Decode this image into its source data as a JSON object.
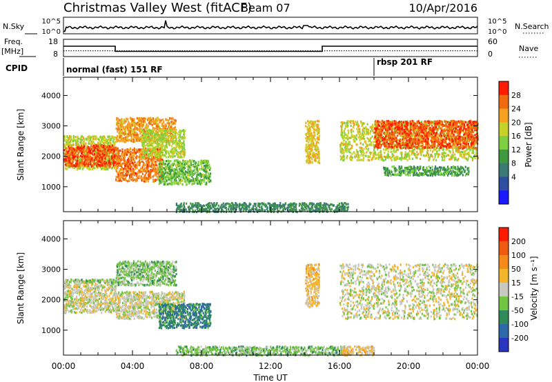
{
  "header": {
    "title": "Christmas Valley West (fitACF)",
    "beam": "Beam 07",
    "date": "10/Apr/2016"
  },
  "noise_panel": {
    "left_label": "N.Sky",
    "left_ticks": [
      "10^5",
      "10^0"
    ],
    "right_label": "N.Search",
    "right_ticks": [
      "10^5",
      "10^0"
    ]
  },
  "freq_panel": {
    "left_label_1": "Freq.",
    "left_label_2": "[MHz]",
    "left_ticks": [
      "18",
      "8"
    ],
    "right_label": "Nave",
    "right_ticks": [
      "60",
      "0"
    ]
  },
  "cpid": {
    "label": "CPID",
    "segments": [
      "normal (fast) 151 RF",
      "rbsp 201 RF"
    ]
  },
  "x_axis": {
    "title": "Time UT",
    "ticks": [
      "00:00",
      "04:00",
      "08:00",
      "12:00",
      "16:00",
      "20:00",
      "00:00"
    ]
  },
  "power_panel": {
    "ylabel": "Slant Range [km]",
    "yticks": [
      "4000",
      "3000",
      "2000",
      "1000"
    ],
    "colorbar_label": "Power [dB]",
    "colorbar_ticks": [
      "28",
      "24",
      "20",
      "16",
      "12",
      "8",
      "4"
    ],
    "colors": [
      "#1a1aff",
      "#2e4fa0",
      "#3a7a74",
      "#3f9a3f",
      "#7fd040",
      "#c8d12a",
      "#f5a020",
      "#f06a10",
      "#ff1a00"
    ]
  },
  "velocity_panel": {
    "ylabel": "Slant Range [km]",
    "yticks": [
      "4000",
      "3000",
      "2000",
      "1000"
    ],
    "colorbar_label": "Velocity [m s⁻¹]",
    "colorbar_ticks": [
      "200",
      "100",
      "50",
      "15",
      "-15",
      "-50",
      "-100",
      "-200"
    ],
    "colors": [
      "#2a35c0",
      "#2e6aa8",
      "#2f8a5a",
      "#72c443",
      "#c9c9c0",
      "#f5b52a",
      "#f58a1a",
      "#f05a10",
      "#ff1a00"
    ]
  },
  "chart_data": [
    {
      "type": "line",
      "title": "N.Sky / N.Search",
      "x": [
        "00:00",
        "02:00",
        "04:00",
        "06:00",
        "08:00",
        "10:00",
        "12:00",
        "14:00",
        "16:00",
        "18:00",
        "20:00",
        "22:00",
        "24:00"
      ],
      "series": [
        {
          "name": "N.Sky",
          "values": [
            1.0,
            1.1,
            1.0,
            1.6,
            1.1,
            1.0,
            1.0,
            1.3,
            1.0,
            1.0,
            1.0,
            1.0,
            1.0
          ]
        }
      ]
    },
    {
      "type": "line",
      "title": "Freq. [MHz] / Nave",
      "x": [
        "00:00",
        "03:00",
        "03:00",
        "15:00",
        "15:00",
        "24:00"
      ],
      "series": [
        {
          "name": "Freq.",
          "values": [
            14,
            14,
            11,
            11,
            14,
            14
          ]
        },
        {
          "name": "Nave",
          "values": [
            20,
            20,
            20,
            20,
            20,
            20
          ]
        }
      ],
      "ylim": [
        8,
        18
      ]
    },
    {
      "type": "heatmap",
      "title": "Power [dB]",
      "xlabel": "Time UT",
      "ylabel": "Slant Range [km]",
      "xlim": [
        0,
        24
      ],
      "ylim": [
        180,
        4600
      ],
      "zlim": [
        0,
        30
      ],
      "regions": [
        {
          "t0": 0.0,
          "t1": 3.0,
          "r0": 1600,
          "r1": 2700,
          "power": 18
        },
        {
          "t0": 0.0,
          "t1": 3.0,
          "r0": 1700,
          "r1": 2400,
          "power": 26
        },
        {
          "t0": 3.0,
          "t1": 5.7,
          "r0": 1200,
          "r1": 2300,
          "power": 24
        },
        {
          "t0": 3.0,
          "t1": 6.5,
          "r0": 2500,
          "r1": 3300,
          "power": 22
        },
        {
          "t0": 4.5,
          "t1": 7.0,
          "r0": 2000,
          "r1": 2900,
          "power": 17
        },
        {
          "t0": 5.5,
          "t1": 8.5,
          "r0": 1100,
          "r1": 1900,
          "power": 14
        },
        {
          "t0": 14.0,
          "t1": 14.8,
          "r0": 1800,
          "r1": 3200,
          "power": 20
        },
        {
          "t0": 16.0,
          "t1": 24.0,
          "r0": 1900,
          "r1": 3200,
          "power": 18
        },
        {
          "t0": 18.0,
          "t1": 24.0,
          "r0": 2300,
          "r1": 3200,
          "power": 26
        },
        {
          "t0": 18.5,
          "t1": 23.5,
          "r0": 1400,
          "r1": 1700,
          "power": 12
        },
        {
          "t0": 6.5,
          "t1": 16.5,
          "r0": 200,
          "r1": 500,
          "power": 10
        }
      ]
    },
    {
      "type": "heatmap",
      "title": "Velocity [m s⁻¹]",
      "xlabel": "Time UT",
      "ylabel": "Slant Range [km]",
      "xlim": [
        0,
        24
      ],
      "ylim": [
        180,
        4600
      ],
      "zlim": [
        -200,
        200
      ],
      "regions": [
        {
          "t0": 0.0,
          "t1": 3.0,
          "r0": 1600,
          "r1": 2700,
          "velocity": 0
        },
        {
          "t0": 0.5,
          "t1": 3.0,
          "r0": 2600,
          "r1": 2700,
          "velocity": -40
        },
        {
          "t0": 3.0,
          "t1": 6.5,
          "r0": 2500,
          "r1": 3300,
          "velocity": -40
        },
        {
          "t0": 3.0,
          "t1": 7.0,
          "r0": 1400,
          "r1": 2300,
          "velocity": 0
        },
        {
          "t0": 5.5,
          "t1": 8.5,
          "r0": 1100,
          "r1": 1900,
          "velocity": -100
        },
        {
          "t0": 14.0,
          "t1": 14.8,
          "r0": 1800,
          "r1": 3200,
          "velocity": 30
        },
        {
          "t0": 16.0,
          "t1": 24.0,
          "r0": 1400,
          "r1": 3200,
          "velocity": 0
        },
        {
          "t0": 6.5,
          "t1": 16.5,
          "r0": 200,
          "r1": 500,
          "velocity": -40
        },
        {
          "t0": 16.0,
          "t1": 18.0,
          "r0": 200,
          "r1": 500,
          "velocity": 30
        }
      ]
    }
  ]
}
